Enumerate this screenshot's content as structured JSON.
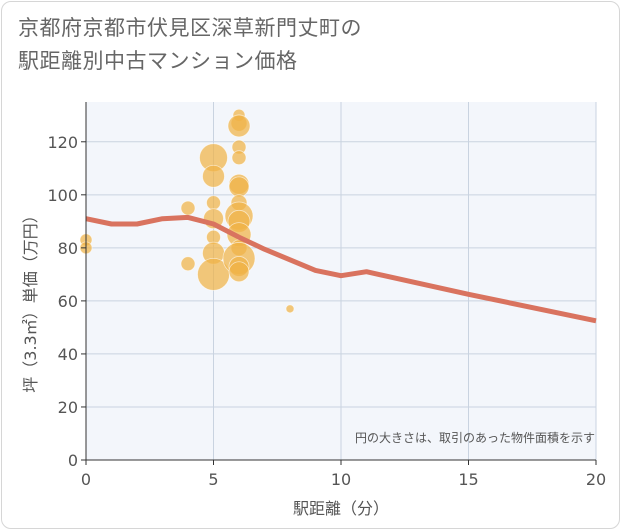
{
  "title_line1": "京都府京都市伏見区深草新門丈町の",
  "title_line2": "駅距離別中古マンション価格",
  "chart_data": {
    "type": "scatter",
    "xlabel": "駅距離（分）",
    "ylabel": "坪（3.3㎡）単価（万円）",
    "xlim": [
      0,
      20
    ],
    "ylim": [
      0,
      135
    ],
    "xticks": [
      0,
      5,
      10,
      15,
      20
    ],
    "yticks": [
      0,
      20,
      40,
      60,
      80,
      100,
      120
    ],
    "grid": true,
    "note": "円の大きさは、取引のあった物件面積を示す",
    "colors": {
      "bubble": "#f0b347",
      "trend": "#d9735f"
    },
    "points": [
      {
        "x": 0,
        "y": 83,
        "s": 6
      },
      {
        "x": 0,
        "y": 80,
        "s": 6
      },
      {
        "x": 4,
        "y": 95,
        "s": 7
      },
      {
        "x": 4,
        "y": 74,
        "s": 7
      },
      {
        "x": 5,
        "y": 114,
        "s": 14
      },
      {
        "x": 5,
        "y": 107,
        "s": 11
      },
      {
        "x": 5,
        "y": 97,
        "s": 7
      },
      {
        "x": 5,
        "y": 91,
        "s": 10
      },
      {
        "x": 5,
        "y": 84,
        "s": 7
      },
      {
        "x": 5,
        "y": 78,
        "s": 11
      },
      {
        "x": 5,
        "y": 70,
        "s": 16
      },
      {
        "x": 6,
        "y": 130,
        "s": 6
      },
      {
        "x": 6,
        "y": 127,
        "s": 8
      },
      {
        "x": 6,
        "y": 126,
        "s": 11
      },
      {
        "x": 6,
        "y": 118,
        "s": 7
      },
      {
        "x": 6,
        "y": 114,
        "s": 7
      },
      {
        "x": 6,
        "y": 104,
        "s": 10
      },
      {
        "x": 6,
        "y": 103,
        "s": 10
      },
      {
        "x": 6,
        "y": 97,
        "s": 8
      },
      {
        "x": 6,
        "y": 92,
        "s": 14
      },
      {
        "x": 6,
        "y": 90,
        "s": 11
      },
      {
        "x": 6,
        "y": 85,
        "s": 12
      },
      {
        "x": 6,
        "y": 80,
        "s": 8
      },
      {
        "x": 6,
        "y": 76,
        "s": 16
      },
      {
        "x": 6,
        "y": 73,
        "s": 10
      },
      {
        "x": 6,
        "y": 71,
        "s": 10
      },
      {
        "x": 8,
        "y": 57,
        "s": 4
      }
    ],
    "trend": [
      {
        "x": 0,
        "y": 91
      },
      {
        "x": 1,
        "y": 89
      },
      {
        "x": 2,
        "y": 89
      },
      {
        "x": 3,
        "y": 91
      },
      {
        "x": 4,
        "y": 91.5
      },
      {
        "x": 5,
        "y": 89
      },
      {
        "x": 6,
        "y": 84
      },
      {
        "x": 7,
        "y": 79.5
      },
      {
        "x": 8,
        "y": 75.5
      },
      {
        "x": 9,
        "y": 71.5
      },
      {
        "x": 10,
        "y": 69.5
      },
      {
        "x": 11,
        "y": 71
      },
      {
        "x": 15,
        "y": 62.5
      },
      {
        "x": 20,
        "y": 52.5
      }
    ]
  }
}
